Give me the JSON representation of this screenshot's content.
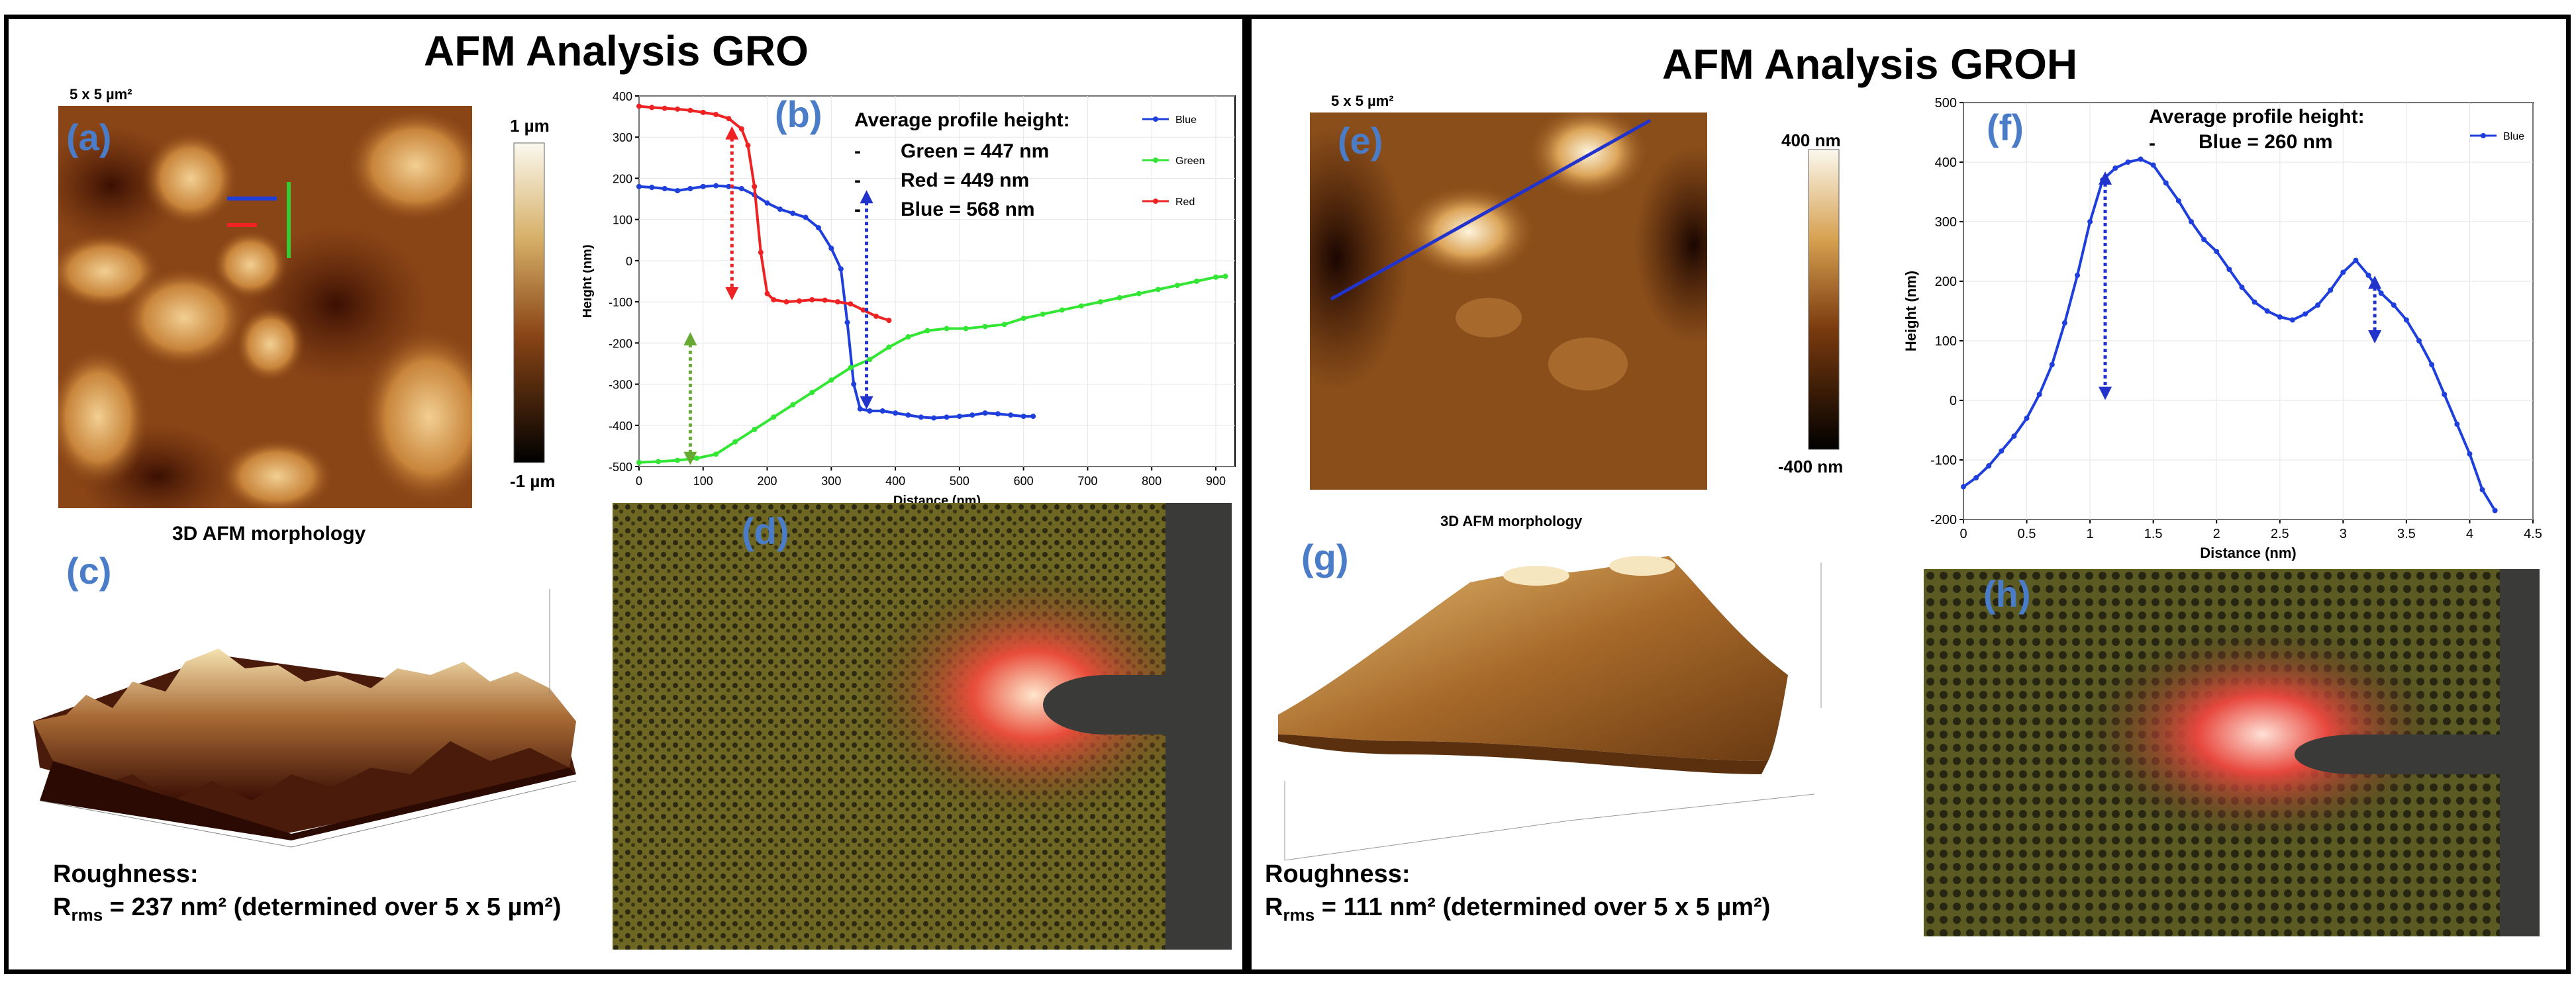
{
  "left": {
    "title": "AFM Analysis GRO",
    "scan_size": "5 x 5 µm²",
    "panel_labels": {
      "a": "(a)",
      "b": "(b)",
      "c": "(c)",
      "d": "(d)"
    },
    "colorbar": {
      "top": "1 µm",
      "bottom": "-1 µm"
    },
    "morph_title": "3D AFM morphology",
    "roughness_label": "Roughness:",
    "roughness_sym": "R",
    "roughness_sub": "rms",
    "roughness_value": " = 237 nm² (determined over 5 x 5 µm²)",
    "annotation": {
      "heading": "Average profile height:",
      "lines": [
        "Green = 447 nm",
        "Red = 449 nm",
        "Blue = 568 nm"
      ],
      "bullet": "-"
    }
  },
  "right": {
    "title": "AFM Analysis GROH",
    "scan_size": "5 x 5 µm²",
    "panel_labels": {
      "e": "(e)",
      "f": "(f)",
      "g": "(g)",
      "h": "(h)"
    },
    "colorbar": {
      "top": "400 nm",
      "bottom": "-400 nm"
    },
    "morph_title": "3D AFM morphology",
    "roughness_label": "Roughness:",
    "roughness_sym": "R",
    "roughness_sub": "rms",
    "roughness_value": " = 111 nm² (determined over 5 x 5 µm²)",
    "annotation": {
      "heading": "Average profile height:",
      "line": "Blue = 260 nm",
      "bullet": "-"
    }
  },
  "colors": {
    "blue": "#1f3fdc",
    "green": "#33e633",
    "red": "#ee2222",
    "label_blue": "#4a7cc8"
  },
  "chart_data": [
    {
      "id": "b",
      "type": "line",
      "xlabel": "Distance (nm)",
      "ylabel": "Height (nm)",
      "xlim": [
        0,
        930
      ],
      "ylim": [
        -500,
        400
      ],
      "xticks": [
        0,
        100,
        200,
        300,
        400,
        500,
        600,
        700,
        800,
        900
      ],
      "yticks": [
        -500,
        -400,
        -300,
        -200,
        -100,
        0,
        100,
        200,
        300,
        400
      ],
      "legend_position": "top-right",
      "series": [
        {
          "name": "Blue",
          "color": "#1f3fdc",
          "x": [
            0,
            20,
            40,
            60,
            80,
            100,
            120,
            140,
            160,
            180,
            200,
            220,
            240,
            260,
            280,
            300,
            315,
            325,
            335,
            345,
            360,
            380,
            400,
            420,
            440,
            460,
            480,
            500,
            520,
            540,
            560,
            580,
            600,
            615
          ],
          "y": [
            180,
            178,
            175,
            170,
            175,
            180,
            182,
            180,
            175,
            160,
            140,
            125,
            115,
            105,
            80,
            30,
            -20,
            -150,
            -300,
            -360,
            -365,
            -365,
            -370,
            -375,
            -380,
            -382,
            -380,
            -378,
            -375,
            -370,
            -372,
            -375,
            -378,
            -378
          ]
        },
        {
          "name": "Green",
          "color": "#33e633",
          "x": [
            0,
            30,
            60,
            90,
            120,
            150,
            180,
            210,
            240,
            270,
            300,
            330,
            360,
            390,
            420,
            450,
            480,
            510,
            540,
            570,
            600,
            630,
            660,
            690,
            720,
            750,
            780,
            810,
            840,
            870,
            900,
            915
          ],
          "y": [
            -490,
            -488,
            -485,
            -480,
            -470,
            -440,
            -410,
            -380,
            -350,
            -320,
            -290,
            -260,
            -240,
            -210,
            -185,
            -170,
            -165,
            -165,
            -160,
            -155,
            -140,
            -130,
            -120,
            -110,
            -100,
            -90,
            -80,
            -70,
            -60,
            -50,
            -40,
            -38
          ]
        },
        {
          "name": "Red",
          "color": "#ee2222",
          "x": [
            0,
            20,
            40,
            60,
            80,
            100,
            120,
            140,
            160,
            170,
            180,
            190,
            200,
            210,
            230,
            250,
            270,
            290,
            310,
            330,
            350,
            370,
            390
          ],
          "y": [
            375,
            372,
            370,
            368,
            365,
            360,
            355,
            345,
            320,
            280,
            180,
            20,
            -80,
            -95,
            -100,
            -98,
            -95,
            -96,
            -100,
            -105,
            -120,
            -135,
            -145
          ]
        }
      ]
    },
    {
      "id": "f",
      "type": "line",
      "xlabel": "Distance (nm)",
      "ylabel": "Height (nm)",
      "xlim": [
        0,
        4.5
      ],
      "ylim": [
        -200,
        500
      ],
      "xticks": [
        0,
        0.5,
        1,
        1.5,
        2,
        2.5,
        3,
        3.5,
        4,
        4.5
      ],
      "yticks": [
        -200,
        -100,
        0,
        100,
        200,
        300,
        400,
        500
      ],
      "legend_position": "top-right",
      "series": [
        {
          "name": "Blue",
          "color": "#1f3fdc",
          "x": [
            0,
            0.1,
            0.2,
            0.3,
            0.4,
            0.5,
            0.6,
            0.7,
            0.8,
            0.9,
            1.0,
            1.1,
            1.2,
            1.3,
            1.4,
            1.5,
            1.6,
            1.7,
            1.8,
            1.9,
            2.0,
            2.1,
            2.2,
            2.3,
            2.4,
            2.5,
            2.6,
            2.7,
            2.8,
            2.9,
            3.0,
            3.1,
            3.2,
            3.3,
            3.4,
            3.5,
            3.6,
            3.7,
            3.8,
            3.9,
            4.0,
            4.1,
            4.2
          ],
          "y": [
            -145,
            -130,
            -110,
            -85,
            -60,
            -30,
            10,
            60,
            130,
            210,
            300,
            370,
            390,
            400,
            405,
            395,
            365,
            335,
            300,
            270,
            250,
            220,
            190,
            165,
            150,
            140,
            135,
            145,
            160,
            185,
            215,
            235,
            210,
            180,
            160,
            135,
            100,
            60,
            10,
            -40,
            -90,
            -150,
            -185
          ]
        }
      ]
    }
  ]
}
